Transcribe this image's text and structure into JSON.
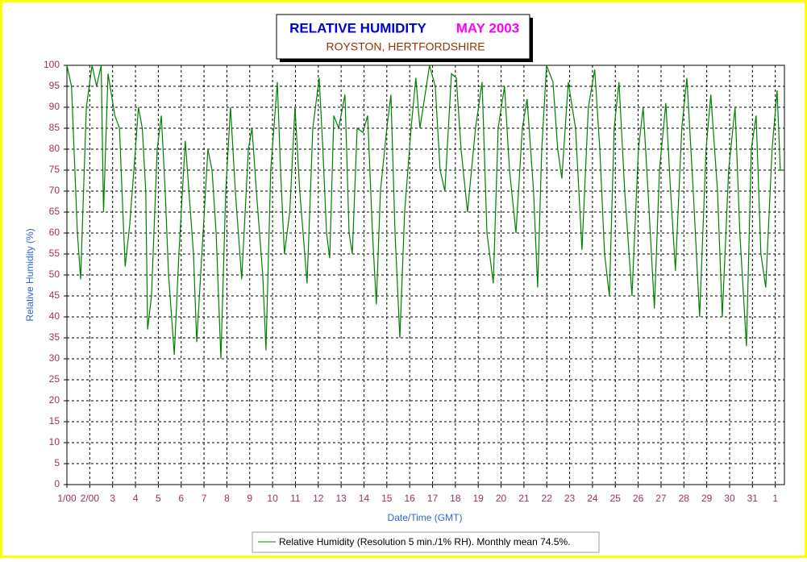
{
  "chart_data": {
    "type": "line",
    "title": "RELATIVE HUMIDITY",
    "title_date": "MAY 2003",
    "subtitle": "ROYSTON, HERTFORDSHIRE",
    "xlabel": "Date/Time (GMT)",
    "ylabel": "Relative Humidity (%)",
    "xlim": [
      0,
      31.4
    ],
    "ylim": [
      0,
      100
    ],
    "grid": true,
    "xticks": [
      {
        "value": 0,
        "label": "1/00"
      },
      {
        "value": 1,
        "label": "2/00"
      },
      {
        "value": 2,
        "label": "3"
      },
      {
        "value": 3,
        "label": "4"
      },
      {
        "value": 4,
        "label": "5"
      },
      {
        "value": 5,
        "label": "6"
      },
      {
        "value": 6,
        "label": "7"
      },
      {
        "value": 7,
        "label": "8"
      },
      {
        "value": 8,
        "label": "9"
      },
      {
        "value": 9,
        "label": "10"
      },
      {
        "value": 10,
        "label": "11"
      },
      {
        "value": 11,
        "label": "12"
      },
      {
        "value": 12,
        "label": "13"
      },
      {
        "value": 13,
        "label": "14"
      },
      {
        "value": 14,
        "label": "15"
      },
      {
        "value": 15,
        "label": "16"
      },
      {
        "value": 16,
        "label": "17"
      },
      {
        "value": 17,
        "label": "18"
      },
      {
        "value": 18,
        "label": "19"
      },
      {
        "value": 19,
        "label": "20"
      },
      {
        "value": 20,
        "label": "21"
      },
      {
        "value": 21,
        "label": "22"
      },
      {
        "value": 22,
        "label": "23"
      },
      {
        "value": 23,
        "label": "24"
      },
      {
        "value": 24,
        "label": "25"
      },
      {
        "value": 25,
        "label": "26"
      },
      {
        "value": 26,
        "label": "27"
      },
      {
        "value": 27,
        "label": "28"
      },
      {
        "value": 28,
        "label": "29"
      },
      {
        "value": 29,
        "label": "30"
      },
      {
        "value": 30,
        "label": "31"
      },
      {
        "value": 31,
        "label": "1"
      }
    ],
    "yticks": [
      0,
      5,
      10,
      15,
      20,
      25,
      30,
      35,
      40,
      45,
      50,
      55,
      60,
      65,
      70,
      75,
      80,
      85,
      90,
      95,
      100
    ],
    "x": [
      0,
      0.2,
      0.46,
      0.6,
      0.85,
      1.1,
      1.3,
      1.5,
      1.6,
      1.8,
      2.1,
      2.3,
      2.45,
      2.55,
      2.75,
      3.0,
      3.13,
      3.3,
      3.45,
      3.53,
      3.7,
      3.95,
      4.13,
      4.3,
      4.45,
      4.7,
      4.9,
      5.18,
      5.54,
      5.68,
      5.96,
      6.17,
      6.35,
      6.53,
      6.74,
      6.95,
      7.16,
      7.37,
      7.65,
      7.94,
      8.1,
      8.29,
      8.57,
      8.71,
      8.92,
      9.21,
      9.35,
      9.52,
      9.75,
      9.98,
      10.19,
      10.51,
      10.76,
      11.04,
      11.2,
      11.36,
      11.5,
      11.68,
      11.89,
      12.17,
      12.35,
      12.49,
      12.7,
      12.95,
      13.16,
      13.37,
      13.54,
      13.72,
      14.0,
      14.18,
      14.36,
      14.57,
      14.78,
      15.06,
      15.27,
      15.45,
      15.59,
      15.87,
      16.12,
      16.33,
      16.54,
      16.83,
      17.04,
      17.25,
      17.53,
      17.88,
      18.17,
      18.38,
      18.66,
      18.87,
      19.15,
      19.37,
      19.65,
      19.93,
      20.14,
      20.42,
      20.6,
      20.78,
      20.99,
      21.27,
      21.48,
      21.66,
      21.94,
      22.26,
      22.54,
      22.82,
      23.1,
      23.32,
      23.53,
      23.74,
      23.95,
      24.16,
      24.41,
      24.73,
      25.01,
      25.22,
      25.43,
      25.71,
      25.93,
      26.21,
      26.42,
      26.63,
      26.91,
      27.13,
      27.41,
      27.69,
      27.97,
      28.18,
      28.47,
      28.68,
      28.96,
      29.24,
      29.45,
      29.74,
      29.95,
      30.16,
      30.37,
      30.58,
      30.86,
      31.08,
      31.22,
      31.39
    ],
    "series": [
      {
        "name": "Relative Humidity (Resolution 5 min./1% RH). Monthly mean 74.5%.",
        "color": "#008000",
        "values": [
          100,
          95,
          60,
          49,
          90,
          100,
          95,
          100,
          65,
          98,
          88,
          85,
          65,
          52,
          62,
          80,
          90,
          85,
          70,
          37,
          45,
          80,
          88,
          70,
          50,
          31,
          55,
          82,
          55,
          34,
          60,
          80,
          75,
          60,
          30,
          70,
          90,
          70,
          49,
          80,
          85,
          70,
          50,
          32,
          75,
          96,
          75,
          55,
          65,
          90,
          70,
          48,
          85,
          97,
          80,
          60,
          54,
          88,
          85,
          93,
          60,
          55,
          85,
          84,
          88,
          60,
          43,
          70,
          85,
          93,
          60,
          35,
          65,
          85,
          97,
          85,
          90,
          100,
          95,
          75,
          70,
          98,
          97,
          80,
          65,
          85,
          96,
          60,
          48,
          85,
          95,
          75,
          60,
          85,
          92,
          70,
          47,
          80,
          100,
          96,
          80,
          73,
          96,
          85,
          56,
          90,
          99,
          80,
          55,
          45,
          85,
          96,
          70,
          45,
          80,
          90,
          70,
          42,
          75,
          91,
          70,
          51,
          85,
          97,
          70,
          40,
          80,
          93,
          70,
          40,
          75,
          90,
          60,
          33,
          80,
          88,
          55,
          47,
          80,
          94,
          75,
          75
        ]
      }
    ]
  }
}
